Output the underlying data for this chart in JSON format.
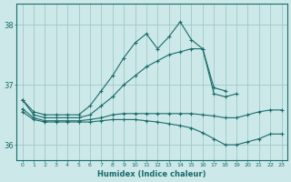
{
  "xlabel": "Humidex (Indice chaleur)",
  "ylabel": "",
  "bg_color": "#cce8e8",
  "grid_color": "#a0c8c8",
  "line_color": "#1a6b6b",
  "xlim": [
    -0.5,
    23.5
  ],
  "ylim": [
    35.75,
    38.35
  ],
  "yticks": [
    36,
    37,
    38
  ],
  "xticks": [
    0,
    1,
    2,
    3,
    4,
    5,
    6,
    7,
    8,
    9,
    10,
    11,
    12,
    13,
    14,
    15,
    16,
    17,
    18,
    19,
    20,
    21,
    22,
    23
  ],
  "lines": [
    {
      "x": [
        0,
        1,
        2,
        3,
        4,
        5,
        6,
        7,
        8,
        9,
        10,
        11,
        12,
        13,
        14,
        15,
        16,
        17,
        18
      ],
      "y": [
        36.75,
        36.55,
        36.5,
        36.5,
        36.5,
        36.5,
        36.65,
        36.9,
        37.15,
        37.45,
        37.7,
        37.85,
        37.6,
        37.8,
        38.05,
        37.75,
        37.6,
        36.95,
        36.9
      ]
    },
    {
      "x": [
        0,
        1,
        2,
        3,
        4,
        5,
        6,
        7,
        8,
        9,
        10,
        11,
        12,
        13,
        14,
        15,
        16,
        17,
        18,
        19,
        20,
        21,
        22,
        23
      ],
      "y": [
        36.75,
        36.5,
        36.45,
        36.45,
        36.45,
        36.45,
        36.5,
        36.65,
        36.8,
        37.0,
        37.15,
        37.3,
        37.4,
        37.5,
        37.55,
        37.6,
        37.6,
        36.85,
        36.8,
        36.85,
        null,
        null,
        null,
        null
      ]
    },
    {
      "x": [
        0,
        1,
        2,
        3,
        4,
        5,
        6,
        7,
        8,
        9,
        10,
        11,
        12,
        13,
        14,
        15,
        16,
        17,
        18,
        19,
        20,
        21,
        22,
        23
      ],
      "y": [
        36.6,
        36.45,
        36.4,
        36.4,
        36.4,
        36.4,
        36.42,
        36.45,
        36.5,
        36.52,
        36.52,
        36.52,
        36.52,
        36.52,
        36.52,
        36.52,
        36.5,
        36.48,
        36.45,
        36.45,
        36.5,
        36.55,
        36.58,
        36.58
      ]
    },
    {
      "x": [
        0,
        1,
        2,
        3,
        4,
        5,
        6,
        7,
        8,
        9,
        10,
        11,
        12,
        13,
        14,
        15,
        16,
        17,
        18,
        19,
        20,
        21,
        22,
        23
      ],
      "y": [
        36.55,
        36.42,
        36.38,
        36.38,
        36.38,
        36.38,
        36.38,
        36.4,
        36.42,
        36.42,
        36.42,
        36.4,
        36.38,
        36.35,
        36.32,
        36.28,
        36.2,
        36.1,
        36.0,
        36.0,
        36.05,
        36.1,
        36.18,
        36.18
      ]
    }
  ]
}
